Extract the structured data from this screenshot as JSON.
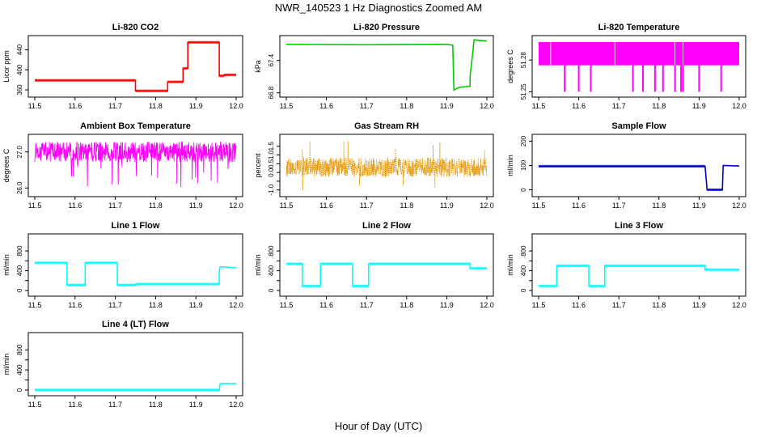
{
  "figure": {
    "title": "NWR_140523  1 Hz Diagnostics Zoomed AM",
    "xlabel": "Hour of Day (UTC)"
  },
  "chart_data": [
    {
      "id": "co2",
      "type": "line",
      "title": "Li-820 CO2",
      "ylabel": "Licor ppm",
      "color": "#ff0000",
      "xlim": [
        11.5,
        12.0
      ],
      "ylim": [
        352,
        462
      ],
      "xticks": [
        "11.5",
        "11.6",
        "11.7",
        "11.8",
        "11.9",
        "12.0"
      ],
      "yticks": [
        360,
        400,
        440
      ],
      "yticklabels": [
        "360",
        "400",
        "440"
      ],
      "series": [
        {
          "x": [
            11.5,
            11.75,
            11.75,
            11.83,
            11.83,
            11.868,
            11.868,
            11.88,
            11.88,
            11.958,
            11.958,
            11.97,
            11.97,
            12.0
          ],
          "y": [
            379,
            379,
            358,
            358,
            376,
            376,
            403,
            403,
            455,
            455,
            388,
            388,
            390,
            390
          ]
        }
      ]
    },
    {
      "id": "pressure",
      "type": "line",
      "title": "Li-820 Pressure",
      "ylabel": "kPa",
      "color": "#00cc00",
      "xlim": [
        11.5,
        12.0
      ],
      "ylim": [
        66.78,
        67.8
      ],
      "xticks": [
        "11.5",
        "11.6",
        "11.7",
        "11.8",
        "11.9",
        "12.0"
      ],
      "yticks": [
        66.8,
        67.4
      ],
      "yticklabels": [
        "66.8",
        "67.4"
      ],
      "series": [
        {
          "x": [
            11.5,
            11.7,
            11.9,
            11.915,
            11.918,
            11.93,
            11.958,
            11.958,
            11.965,
            11.968,
            12.0
          ],
          "y": [
            67.7,
            67.69,
            67.7,
            67.68,
            66.85,
            66.9,
            66.92,
            67.1,
            67.55,
            67.78,
            67.76
          ]
        }
      ]
    },
    {
      "id": "licor_temp",
      "type": "line",
      "title": "Li-820 Temperature",
      "ylabel": "degrees C",
      "color": "#ff00ff",
      "xlim": [
        11.5,
        12.0
      ],
      "ylim": [
        51.248,
        51.3
      ],
      "xticks": [
        "11.5",
        "11.6",
        "11.7",
        "11.8",
        "11.9",
        "12.0"
      ],
      "yticks": [
        51.25,
        51.28
      ],
      "yticklabels": [
        "51.25",
        "51.28"
      ],
      "series": [
        {
          "upper": 51.297,
          "base": 51.275,
          "drops_to": 51.25,
          "drop_x": [
            11.565,
            11.6,
            11.63,
            11.735,
            11.76,
            11.79,
            11.81,
            11.84,
            11.855,
            11.86,
            11.9,
            11.955
          ]
        }
      ]
    },
    {
      "id": "box_temp",
      "type": "line",
      "title": "Ambient Box Temperature",
      "ylabel": "degrees C",
      "color": "#ff00ff",
      "xlim": [
        11.5,
        12.0
      ],
      "ylim": [
        25.85,
        27.4
      ],
      "xticks": [
        "11.5",
        "11.6",
        "11.7",
        "11.8",
        "11.9",
        "12.0"
      ],
      "yticks": [
        26.0,
        27.0
      ],
      "yticklabels": [
        "26.0",
        "27.0"
      ],
      "series": [
        {
          "mean": 27.0,
          "spread": 0.28,
          "low_min": 26.0
        }
      ]
    },
    {
      "id": "rh",
      "type": "scatter",
      "title": "Gas Stream RH",
      "ylabel": "percent",
      "color": "#e69500",
      "xlim": [
        11.5,
        12.0
      ],
      "ylim": [
        -1.2,
        2.0
      ],
      "xticks": [
        "11.5",
        "11.6",
        "11.7",
        "11.8",
        "11.9",
        "12.0"
      ],
      "yticks": [
        -1.0,
        -0.5,
        0.0,
        0.5,
        1.0,
        1.5
      ],
      "yticklabels": [
        "-1.0",
        "",
        "0.0",
        "0.5",
        "1.0",
        "1.5"
      ],
      "series": [
        {
          "mean": 0.3,
          "spread": 0.55,
          "max": 1.8,
          "min": -1.0
        }
      ]
    },
    {
      "id": "sample_flow",
      "type": "line",
      "title": "Sample Flow",
      "ylabel": "ml/min",
      "color": "#0000cc",
      "xlim": [
        11.5,
        12.0
      ],
      "ylim": [
        -15,
        215
      ],
      "xticks": [
        "11.5",
        "11.6",
        "11.7",
        "11.8",
        "11.9",
        "12.0"
      ],
      "yticks": [
        0,
        100,
        200
      ],
      "yticklabels": [
        "0",
        "100",
        "200"
      ],
      "series": [
        {
          "x": [
            11.5,
            11.915,
            11.92,
            11.958,
            11.96,
            12.0
          ],
          "y": [
            97,
            97,
            0,
            0,
            100,
            98
          ]
        }
      ]
    },
    {
      "id": "line1",
      "type": "line",
      "title": "Line 1 Flow",
      "ylabel": "ml/min",
      "color": "#00ffff",
      "xlim": [
        11.5,
        12.0
      ],
      "ylim": [
        -50,
        1080
      ],
      "xticks": [
        "11.5",
        "11.6",
        "11.7",
        "11.8",
        "11.9",
        "12.0"
      ],
      "yticks": [
        0,
        200,
        400,
        600,
        800
      ],
      "yticklabels": [
        "0",
        "",
        "400",
        "",
        "800"
      ],
      "series": [
        {
          "x": [
            11.5,
            11.58,
            11.58,
            11.625,
            11.625,
            11.705,
            11.705,
            11.75,
            11.75,
            11.958,
            11.958,
            11.96,
            12.0
          ],
          "y": [
            560,
            560,
            110,
            110,
            560,
            560,
            110,
            110,
            130,
            130,
            380,
            480,
            460
          ]
        }
      ]
    },
    {
      "id": "line2",
      "type": "line",
      "title": "Line 2 Flow",
      "ylabel": "ml/min",
      "color": "#00ffff",
      "xlim": [
        11.5,
        12.0
      ],
      "ylim": [
        -50,
        1080
      ],
      "xticks": [
        "11.5",
        "11.6",
        "11.7",
        "11.8",
        "11.9",
        "12.0"
      ],
      "yticks": [
        0,
        200,
        400,
        600,
        800
      ],
      "yticklabels": [
        "0",
        "",
        "400",
        "",
        "800"
      ],
      "series": [
        {
          "x": [
            11.5,
            11.54,
            11.54,
            11.585,
            11.585,
            11.665,
            11.665,
            11.705,
            11.705,
            11.958,
            11.958,
            12.0
          ],
          "y": [
            540,
            540,
            90,
            90,
            540,
            540,
            90,
            90,
            540,
            540,
            450,
            450
          ]
        }
      ]
    },
    {
      "id": "line3",
      "type": "line",
      "title": "Line 3 Flow",
      "ylabel": "ml/min",
      "color": "#00ffff",
      "xlim": [
        11.5,
        12.0
      ],
      "ylim": [
        -50,
        1080
      ],
      "xticks": [
        "11.5",
        "11.6",
        "11.7",
        "11.8",
        "11.9",
        "12.0"
      ],
      "yticks": [
        0,
        200,
        400,
        600,
        800
      ],
      "yticklabels": [
        "0",
        "",
        "400",
        "",
        "800"
      ],
      "series": [
        {
          "x": [
            11.5,
            11.545,
            11.545,
            11.625,
            11.625,
            11.665,
            11.665,
            11.915,
            11.915,
            12.0
          ],
          "y": [
            90,
            90,
            500,
            500,
            90,
            90,
            500,
            500,
            420,
            420
          ]
        }
      ]
    },
    {
      "id": "line4",
      "type": "line",
      "title": "Line 4 (LT) Flow",
      "ylabel": "ml/min",
      "color": "#00ffff",
      "xlim": [
        11.5,
        12.0
      ],
      "ylim": [
        -50,
        1080
      ],
      "xticks": [
        "11.5",
        "11.6",
        "11.7",
        "11.8",
        "11.9",
        "12.0"
      ],
      "yticks": [
        0,
        200,
        400,
        600,
        800
      ],
      "yticklabels": [
        "0",
        "",
        "400",
        "",
        "800"
      ],
      "series": [
        {
          "x": [
            11.5,
            11.958,
            11.96,
            11.97,
            12.0
          ],
          "y": [
            0,
            0,
            120,
            130,
            125
          ]
        }
      ]
    }
  ]
}
